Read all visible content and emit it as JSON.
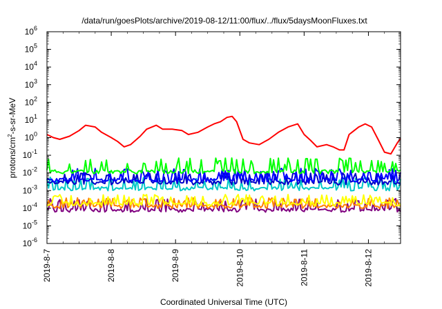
{
  "chart_data": {
    "type": "line",
    "title": "/data/run/goesPlots/archive/2019-08-12/11:00/flux/../flux/5daysMoonFluxes.txt",
    "xlabel": "Coordinated Universal Time (UTC)",
    "ylabel": {
      "prefix": "protons/cm",
      "sup": "2",
      "suffix": "-s-sr-MeV"
    },
    "yscale": "log",
    "ylim_exp": [
      -6,
      6
    ],
    "y_ticks": [
      {
        "base": "10",
        "exp": "-6"
      },
      {
        "base": "10",
        "exp": "-5"
      },
      {
        "base": "10",
        "exp": "-4"
      },
      {
        "base": "10",
        "exp": "-3"
      },
      {
        "base": "10",
        "exp": "-2"
      },
      {
        "base": "10",
        "exp": "-1"
      },
      {
        "base": "10",
        "exp": "0"
      },
      {
        "base": "10",
        "exp": "1"
      },
      {
        "base": "10",
        "exp": "2"
      },
      {
        "base": "10",
        "exp": "3"
      },
      {
        "base": "10",
        "exp": "4"
      },
      {
        "base": "10",
        "exp": "5"
      },
      {
        "base": "10",
        "exp": "6"
      }
    ],
    "x_day_range": [
      7,
      12.5
    ],
    "x_ticks": [
      {
        "label": "2019-8-7",
        "day": 7
      },
      {
        "label": "2019-8-8",
        "day": 8
      },
      {
        "label": "2019-8-9",
        "day": 9
      },
      {
        "label": "2019-8-10",
        "day": 10
      },
      {
        "label": "2019-8-11",
        "day": 11
      },
      {
        "label": "2019-8-12",
        "day": 12
      }
    ],
    "grid": false,
    "series": [
      {
        "color": "#ff0000",
        "x": [
          7.0,
          7.1,
          7.2,
          7.35,
          7.5,
          7.6,
          7.75,
          7.85,
          8.0,
          8.1,
          8.2,
          8.3,
          8.45,
          8.55,
          8.7,
          8.8,
          8.95,
          9.1,
          9.2,
          9.35,
          9.5,
          9.6,
          9.7,
          9.8,
          9.88,
          9.95,
          10.05,
          10.15,
          10.3,
          10.45,
          10.6,
          10.75,
          10.9,
          11.0,
          11.1,
          11.2,
          11.35,
          11.45,
          11.55,
          11.62,
          11.7,
          11.85,
          11.95,
          12.05,
          12.15,
          12.25,
          12.35,
          12.45,
          12.5
        ],
        "y": [
          1.5,
          1.0,
          0.8,
          1.2,
          2.5,
          5.0,
          4.0,
          2.0,
          1.0,
          0.6,
          0.3,
          0.4,
          1.2,
          3.0,
          5.0,
          3.0,
          3.0,
          2.5,
          1.5,
          2.0,
          4.0,
          6.0,
          8.0,
          14.0,
          16.0,
          8.0,
          0.8,
          0.5,
          0.4,
          0.8,
          2.0,
          4.0,
          6.0,
          1.5,
          0.7,
          0.3,
          0.4,
          0.3,
          0.2,
          0.2,
          1.5,
          4.0,
          6.0,
          4.0,
          0.8,
          0.15,
          0.12,
          0.5,
          0.9
        ]
      },
      {
        "color": "#00ff00",
        "base": 0.012,
        "spike": 0.07,
        "seed": 11
      },
      {
        "color": "#0000ff",
        "base": 0.004,
        "spike": 0.018,
        "seed": 23
      },
      {
        "color": "#0000c8",
        "base": 0.0028,
        "spike": 0.01,
        "seed": 37
      },
      {
        "color": "#00c8c8",
        "base": 0.0013,
        "spike": 0.006,
        "seed": 41
      },
      {
        "color": "#ffff00",
        "base": 0.00018,
        "spike": 0.0006,
        "seed": 53
      },
      {
        "color": "#ff8000",
        "base": 0.00013,
        "spike": 0.0004,
        "seed": 67
      },
      {
        "color": "#800080",
        "base": 8e-05,
        "spike": 0.00035,
        "seed": 79
      }
    ]
  }
}
